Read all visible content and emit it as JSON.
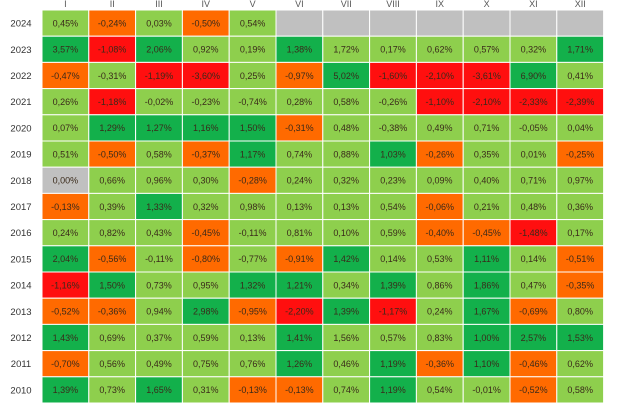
{
  "chart_data": {
    "type": "heatmap",
    "columns": [
      "I",
      "II",
      "III",
      "IV",
      "V",
      "VI",
      "VII",
      "VIII",
      "IX",
      "X",
      "XI",
      "XII"
    ],
    "rows": [
      {
        "year": "2024",
        "cells": [
          "0,45%",
          "-0,24%",
          "0,03%",
          "-0,50%",
          "0,54%",
          "",
          "",
          "",
          "",
          "",
          "",
          ""
        ],
        "status": [
          "l",
          "o",
          "l",
          "o",
          "l",
          "x",
          "x",
          "x",
          "x",
          "x",
          "x",
          "x"
        ]
      },
      {
        "year": "2023",
        "cells": [
          "3,57%",
          "-1,08%",
          "2,06%",
          "0,92%",
          "0,19%",
          "1,38%",
          "1,72%",
          "0,17%",
          "0,62%",
          "0,57%",
          "0,32%",
          "1,71%"
        ],
        "status": [
          "g",
          "r",
          "g",
          "l",
          "l",
          "g",
          "l",
          "l",
          "l",
          "l",
          "l",
          "g"
        ]
      },
      {
        "year": "2022",
        "cells": [
          "-0,47%",
          "-0,31%",
          "-1,19%",
          "-3,60%",
          "0,25%",
          "-0,97%",
          "5,02%",
          "-1,60%",
          "-2,10%",
          "-3,61%",
          "6,90%",
          "0,41%"
        ],
        "status": [
          "o",
          "l",
          "r",
          "r",
          "l",
          "o",
          "g",
          "r",
          "r",
          "r",
          "g",
          "l"
        ]
      },
      {
        "year": "2021",
        "cells": [
          "0,26%",
          "-1,18%",
          "-0,02%",
          "-0,23%",
          "-0,74%",
          "0,28%",
          "0,58%",
          "-0,26%",
          "-1,10%",
          "-2,10%",
          "-2,33%",
          "-2,39%"
        ],
        "status": [
          "l",
          "r",
          "l",
          "l",
          "l",
          "l",
          "l",
          "l",
          "r",
          "r",
          "r",
          "r"
        ]
      },
      {
        "year": "2020",
        "cells": [
          "0,07%",
          "1,29%",
          "1,27%",
          "1,16%",
          "1,50%",
          "-0,31%",
          "0,48%",
          "-0,38%",
          "0,49%",
          "0,71%",
          "-0,05%",
          "0,04%"
        ],
        "status": [
          "l",
          "g",
          "g",
          "g",
          "g",
          "o",
          "l",
          "l",
          "l",
          "l",
          "l",
          "l"
        ]
      },
      {
        "year": "2019",
        "cells": [
          "0,51%",
          "-0,50%",
          "0,58%",
          "-0,37%",
          "1,17%",
          "0,74%",
          "0,88%",
          "1,03%",
          "-0,26%",
          "0,35%",
          "0,01%",
          "-0,25%"
        ],
        "status": [
          "l",
          "o",
          "l",
          "o",
          "g",
          "l",
          "l",
          "g",
          "o",
          "l",
          "l",
          "o"
        ]
      },
      {
        "year": "2018",
        "cells": [
          "0,00%",
          "0,66%",
          "0,96%",
          "0,30%",
          "-0,28%",
          "0,24%",
          "0,32%",
          "0,23%",
          "0,09%",
          "0,40%",
          "0,71%",
          "0,97%"
        ],
        "status": [
          "x",
          "l",
          "l",
          "l",
          "o",
          "l",
          "l",
          "l",
          "l",
          "l",
          "l",
          "l"
        ]
      },
      {
        "year": "2017",
        "cells": [
          "-0,13%",
          "0,39%",
          "1,33%",
          "0,32%",
          "0,98%",
          "0,13%",
          "0,13%",
          "0,54%",
          "-0,06%",
          "0,21%",
          "0,48%",
          "0,36%"
        ],
        "status": [
          "o",
          "l",
          "g",
          "l",
          "l",
          "l",
          "l",
          "l",
          "o",
          "l",
          "l",
          "l"
        ]
      },
      {
        "year": "2016",
        "cells": [
          "0,24%",
          "0,82%",
          "0,43%",
          "-0,45%",
          "-0,11%",
          "0,81%",
          "0,10%",
          "0,59%",
          "-0,40%",
          "-0,45%",
          "-1,48%",
          "0,17%"
        ],
        "status": [
          "l",
          "l",
          "l",
          "o",
          "l",
          "l",
          "l",
          "l",
          "o",
          "o",
          "r",
          "l"
        ]
      },
      {
        "year": "2015",
        "cells": [
          "2,04%",
          "-0,56%",
          "-0,11%",
          "-0,80%",
          "-0,77%",
          "-0,91%",
          "1,42%",
          "0,14%",
          "0,53%",
          "1,11%",
          "0,14%",
          "-0,51%"
        ],
        "status": [
          "g",
          "o",
          "l",
          "o",
          "l",
          "o",
          "g",
          "l",
          "l",
          "g",
          "l",
          "o"
        ]
      },
      {
        "year": "2014",
        "cells": [
          "-1,16%",
          "1,50%",
          "0,73%",
          "0,95%",
          "1,32%",
          "1,21%",
          "0,34%",
          "1,39%",
          "0,86%",
          "1,86%",
          "0,47%",
          "-0,35%"
        ],
        "status": [
          "r",
          "g",
          "l",
          "l",
          "g",
          "g",
          "l",
          "g",
          "l",
          "g",
          "l",
          "o"
        ]
      },
      {
        "year": "2013",
        "cells": [
          "-0,52%",
          "-0,36%",
          "0,94%",
          "2,98%",
          "-0,95%",
          "-2,20%",
          "1,39%",
          "-1,17%",
          "0,24%",
          "1,67%",
          "-0,69%",
          "0,80%"
        ],
        "status": [
          "o",
          "o",
          "l",
          "g",
          "o",
          "r",
          "g",
          "r",
          "l",
          "g",
          "o",
          "l"
        ]
      },
      {
        "year": "2012",
        "cells": [
          "1,43%",
          "0,69%",
          "0,37%",
          "0,59%",
          "0,13%",
          "1,41%",
          "1,56%",
          "0,57%",
          "0,83%",
          "1,00%",
          "2,57%",
          "1,53%"
        ],
        "status": [
          "g",
          "l",
          "l",
          "l",
          "l",
          "g",
          "l",
          "l",
          "l",
          "g",
          "g",
          "g"
        ]
      },
      {
        "year": "2011",
        "cells": [
          "-0,70%",
          "0,56%",
          "0,49%",
          "0,75%",
          "0,76%",
          "1,26%",
          "0,46%",
          "1,19%",
          "-0,36%",
          "1,10%",
          "-0,46%",
          "0,62%"
        ],
        "status": [
          "o",
          "l",
          "l",
          "l",
          "l",
          "g",
          "l",
          "g",
          "o",
          "g",
          "o",
          "l"
        ]
      },
      {
        "year": "2010",
        "cells": [
          "1,39%",
          "0,73%",
          "1,65%",
          "0,31%",
          "-0,13%",
          "-0,13%",
          "0,74%",
          "1,19%",
          "0,54%",
          "-0,01%",
          "-0,52%",
          "0,58%"
        ],
        "status": [
          "g",
          "l",
          "g",
          "l",
          "o",
          "o",
          "l",
          "g",
          "l",
          "l",
          "o",
          "l"
        ]
      }
    ],
    "colors": {
      "g": "#13b04b",
      "l": "#8ecf4d",
      "o": "#ff6a00",
      "r": "#ff0f0f",
      "x": "#c0c0c0"
    }
  }
}
